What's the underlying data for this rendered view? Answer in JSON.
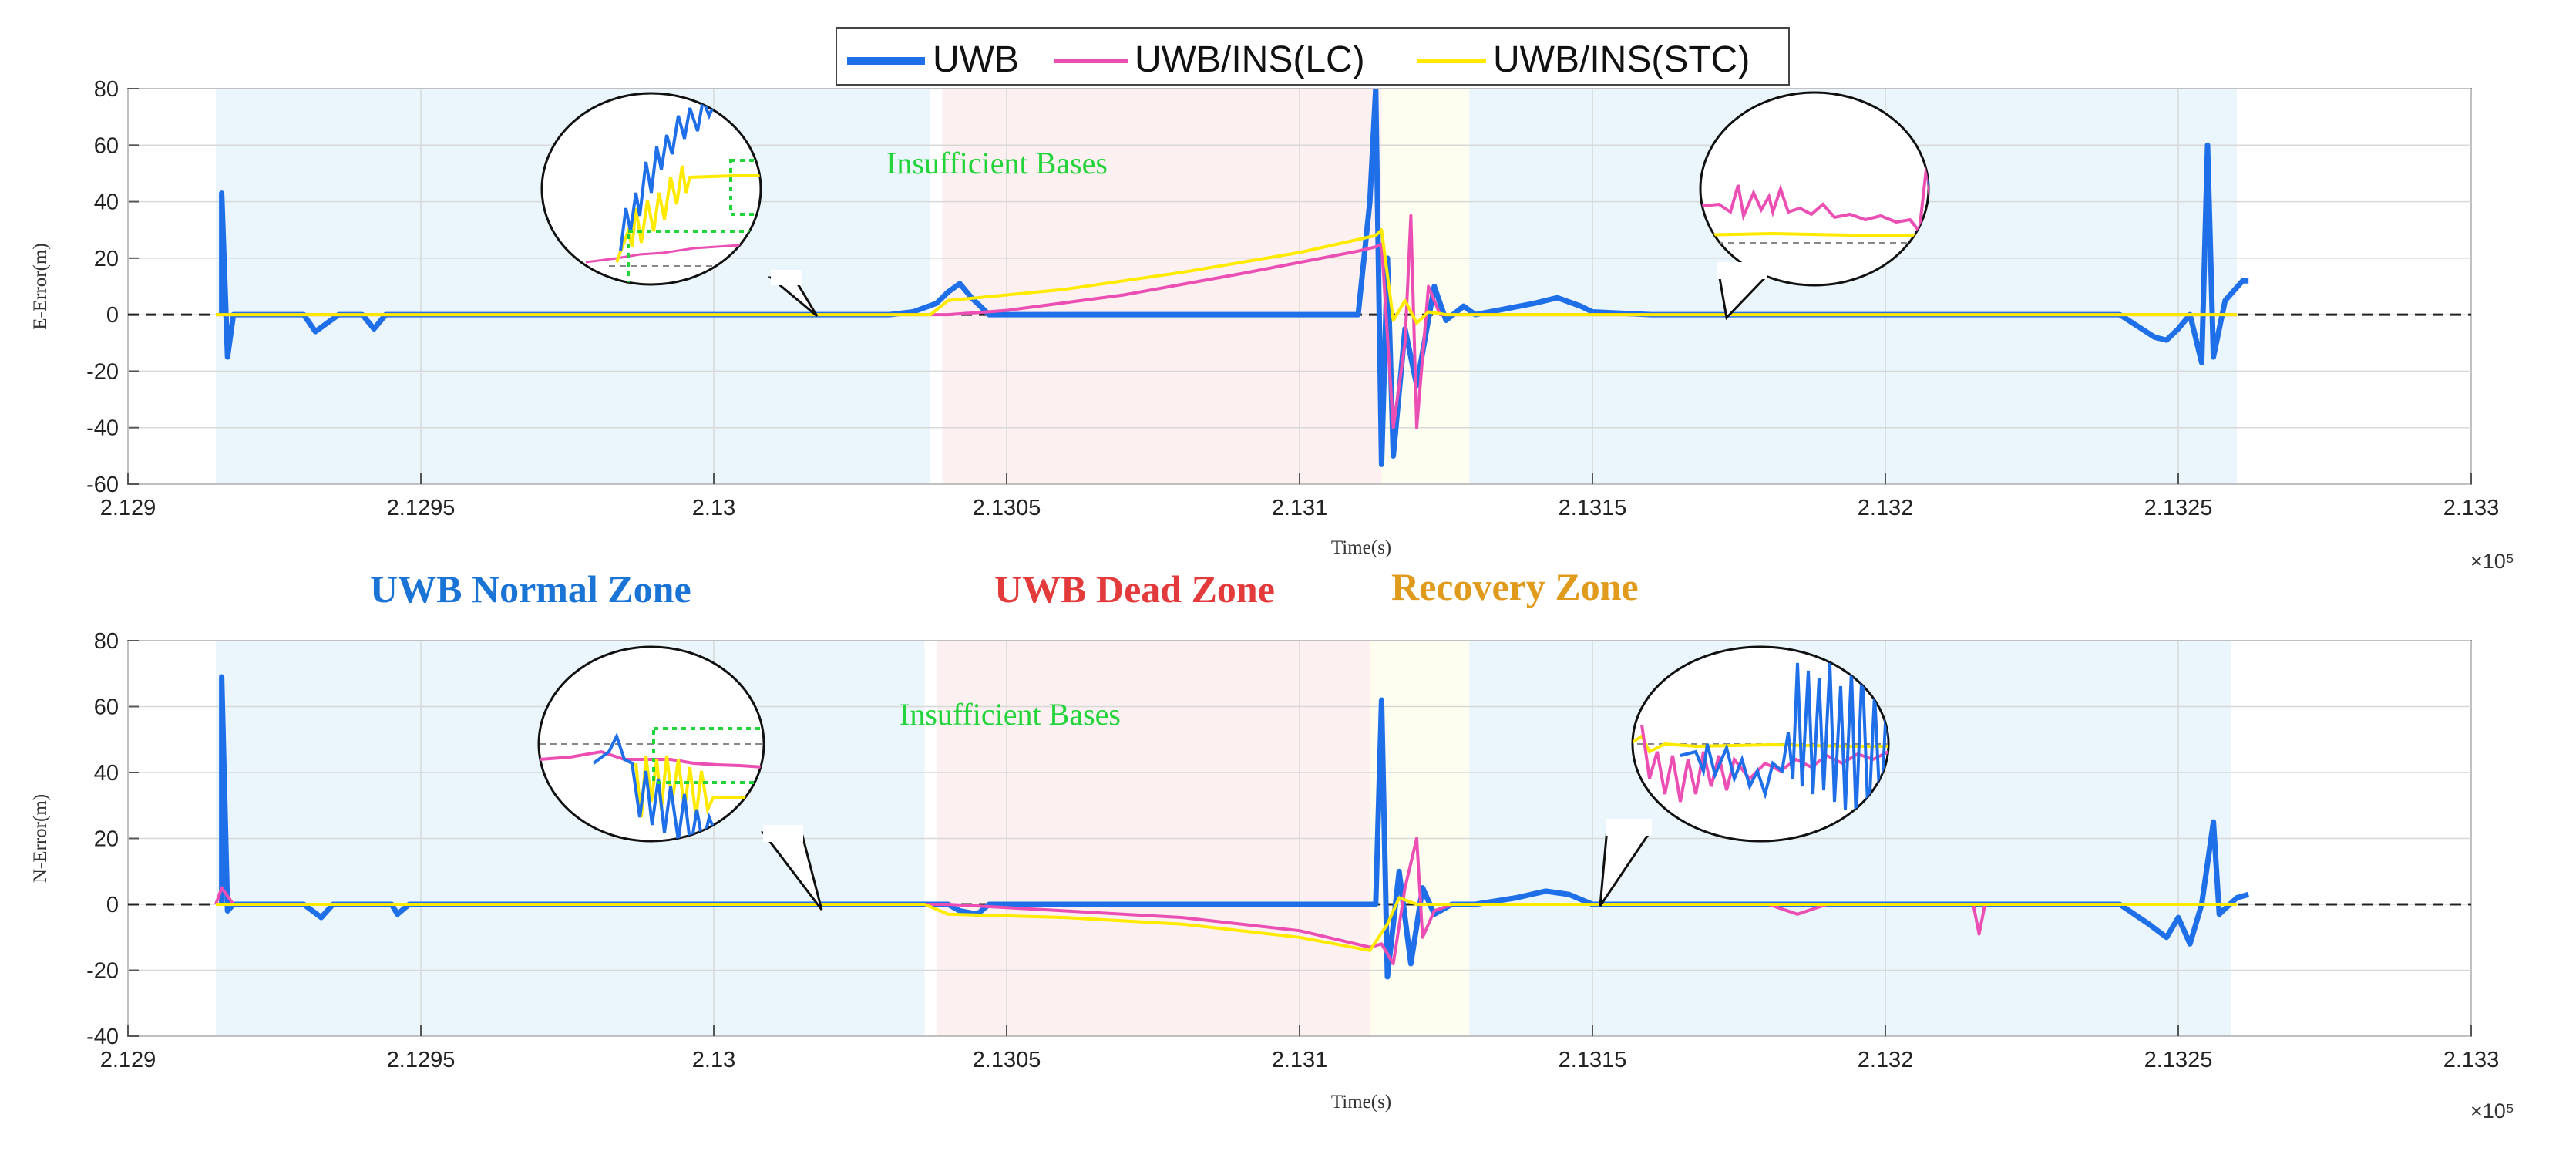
{
  "legend": {
    "entries": [
      {
        "label": "UWB",
        "color": "#1f6fe8"
      },
      {
        "label": "UWB/INS(LC)",
        "color": "#ec4fb4"
      },
      {
        "label": "UWB/INS(STC)",
        "color": "#ffea00"
      }
    ]
  },
  "colors": {
    "uwb": "#1f6fe8",
    "lc": "#ec4fb4",
    "stc": "#ffea00",
    "normal_zone_fill": "#eaf6fb",
    "dead_zone_fill": "#fdf0f0",
    "recovery_zone_fill": "#fdfdf0",
    "annotation": "#22d43a",
    "normal_label": "#1a74d6",
    "dead_label": "#e33b3b",
    "recovery_label": "#e09a1c"
  },
  "zone_labels": {
    "normal": "UWB Normal Zone",
    "dead": "UWB Dead Zone",
    "recovery": "Recovery Zone"
  },
  "chart_data": [
    {
      "type": "line",
      "ylabel": "E-Error(m)",
      "xlabel": "Time(s)",
      "x_multiplier": "×10⁵",
      "xlim": [
        2.129,
        2.133
      ],
      "ylim": [
        -60,
        80
      ],
      "xticks": [
        "2.129",
        "2.1295",
        "2.13",
        "2.1305",
        "2.131",
        "2.1315",
        "2.132",
        "2.1325",
        "2.133"
      ],
      "xtick_values": [
        2.129,
        2.1295,
        2.13,
        2.1305,
        2.131,
        2.1315,
        2.132,
        2.1325,
        2.133
      ],
      "yticks": [
        "80",
        "60",
        "40",
        "20",
        "0",
        "-20",
        "-40",
        "-60"
      ],
      "ytick_values": [
        80,
        60,
        40,
        20,
        0,
        -20,
        -40,
        -60
      ],
      "zones": [
        {
          "name": "normal",
          "start": 2.12915,
          "end": 2.13037
        },
        {
          "name": "dead",
          "start": 2.13039,
          "end": 2.13114
        },
        {
          "name": "recovery",
          "start": 2.13114,
          "end": 2.13129
        },
        {
          "name": "normal",
          "start": 2.13129,
          "end": 2.1326
        }
      ],
      "annotation": "Insufficient Bases",
      "series": [
        {
          "name": "UWB",
          "points": [
            [
              2.12916,
              0
            ],
            [
              2.12916,
              43
            ],
            [
              2.12917,
              -15
            ],
            [
              2.12918,
              0
            ],
            [
              2.1293,
              0
            ],
            [
              2.12932,
              -6
            ],
            [
              2.12934,
              -3
            ],
            [
              2.12936,
              0
            ],
            [
              2.1294,
              0
            ],
            [
              2.12942,
              -5
            ],
            [
              2.12944,
              0
            ],
            [
              2.1303,
              0
            ],
            [
              2.13034,
              1
            ],
            [
              2.13038,
              4
            ],
            [
              2.1304,
              8
            ],
            [
              2.13042,
              11
            ],
            [
              2.13044,
              6
            ],
            [
              2.13047,
              0
            ],
            [
              2.1311,
              0
            ],
            [
              2.13112,
              40
            ],
            [
              2.13113,
              80
            ],
            [
              2.13114,
              -53
            ],
            [
              2.13115,
              20
            ],
            [
              2.13116,
              -50
            ],
            [
              2.13118,
              -5
            ],
            [
              2.1312,
              -25
            ],
            [
              2.13123,
              10
            ],
            [
              2.13125,
              -2
            ],
            [
              2.13128,
              3
            ],
            [
              2.1313,
              0
            ],
            [
              2.13135,
              2
            ],
            [
              2.1314,
              4
            ],
            [
              2.13144,
              6
            ],
            [
              2.13148,
              3
            ],
            [
              2.1315,
              1
            ],
            [
              2.1316,
              0
            ],
            [
              2.1324,
              0
            ],
            [
              2.13243,
              -4
            ],
            [
              2.13246,
              -8
            ],
            [
              2.13248,
              -9
            ],
            [
              2.1325,
              -5
            ],
            [
              2.13252,
              0
            ],
            [
              2.13254,
              -17
            ],
            [
              2.13255,
              60
            ],
            [
              2.13256,
              -15
            ],
            [
              2.13258,
              5
            ],
            [
              2.13261,
              12
            ],
            [
              2.13262,
              12
            ]
          ]
        },
        {
          "name": "UWB/INS(LC)",
          "points": [
            [
              2.12915,
              0
            ],
            [
              2.1304,
              0
            ],
            [
              2.1305,
              1.5
            ],
            [
              2.1307,
              7
            ],
            [
              2.1309,
              14.5
            ],
            [
              2.1311,
              22.5
            ],
            [
              2.13113,
              24
            ],
            [
              2.13114,
              25
            ],
            [
              2.13116,
              -40
            ],
            [
              2.13118,
              -10
            ],
            [
              2.13119,
              35
            ],
            [
              2.1312,
              -40
            ],
            [
              2.13122,
              10
            ],
            [
              2.13124,
              0
            ],
            [
              2.1313,
              0
            ],
            [
              2.1326,
              0
            ]
          ]
        },
        {
          "name": "UWB/INS(STC)",
          "points": [
            [
              2.12915,
              0
            ],
            [
              2.13037,
              0
            ],
            [
              2.1304,
              5
            ],
            [
              2.1306,
              9
            ],
            [
              2.1308,
              15
            ],
            [
              2.131,
              22
            ],
            [
              2.13113,
              28
            ],
            [
              2.13114,
              30
            ],
            [
              2.13116,
              -2
            ],
            [
              2.13118,
              5
            ],
            [
              2.1312,
              -3
            ],
            [
              2.13122,
              1
            ],
            [
              2.13125,
              0
            ],
            [
              2.1326,
              0
            ]
          ]
        }
      ]
    },
    {
      "type": "line",
      "ylabel": "N-Error(m)",
      "xlabel": "Time(s)",
      "x_multiplier": "×10⁵",
      "xlim": [
        2.129,
        2.133
      ],
      "ylim": [
        -40,
        80
      ],
      "xticks": [
        "2.129",
        "2.1295",
        "2.13",
        "2.1305",
        "2.131",
        "2.1315",
        "2.132",
        "2.1325",
        "2.133"
      ],
      "xtick_values": [
        2.129,
        2.1295,
        2.13,
        2.1305,
        2.131,
        2.1315,
        2.132,
        2.1325,
        2.133
      ],
      "yticks": [
        "80",
        "60",
        "40",
        "20",
        "0",
        "-20",
        "-40"
      ],
      "ytick_values": [
        80,
        60,
        40,
        20,
        0,
        -20,
        -40
      ],
      "zones": [
        {
          "name": "normal",
          "start": 2.12915,
          "end": 2.13036
        },
        {
          "name": "dead",
          "start": 2.13038,
          "end": 2.13112
        },
        {
          "name": "recovery",
          "start": 2.13112,
          "end": 2.13129
        },
        {
          "name": "normal",
          "start": 2.13129,
          "end": 2.13259
        }
      ],
      "annotation": "Insufficient Bases",
      "series": [
        {
          "name": "UWB",
          "points": [
            [
              2.12916,
              0
            ],
            [
              2.12916,
              69
            ],
            [
              2.12917,
              -2
            ],
            [
              2.12918,
              0
            ],
            [
              2.1293,
              0
            ],
            [
              2.12933,
              -4
            ],
            [
              2.12935,
              0
            ],
            [
              2.12945,
              0
            ],
            [
              2.12946,
              -3
            ],
            [
              2.12948,
              0
            ],
            [
              2.1304,
              0
            ],
            [
              2.13042,
              -2
            ],
            [
              2.13045,
              -3
            ],
            [
              2.13047,
              0
            ],
            [
              2.13113,
              0
            ],
            [
              2.13114,
              62
            ],
            [
              2.13115,
              -22
            ],
            [
              2.13117,
              10
            ],
            [
              2.13119,
              -18
            ],
            [
              2.13121,
              5
            ],
            [
              2.13123,
              -3
            ],
            [
              2.13126,
              0
            ],
            [
              2.1313,
              0
            ],
            [
              2.13137,
              2
            ],
            [
              2.13142,
              4
            ],
            [
              2.13146,
              3
            ],
            [
              2.1315,
              0
            ],
            [
              2.1324,
              0
            ],
            [
              2.13245,
              -6
            ],
            [
              2.13248,
              -10
            ],
            [
              2.1325,
              -4
            ],
            [
              2.13252,
              -12
            ],
            [
              2.13254,
              0
            ],
            [
              2.13256,
              25
            ],
            [
              2.13257,
              -3
            ],
            [
              2.1326,
              2
            ],
            [
              2.13262,
              3
            ]
          ]
        },
        {
          "name": "UWB/INS(LC)",
          "points": [
            [
              2.12915,
              0
            ],
            [
              2.12916,
              5
            ],
            [
              2.12918,
              0
            ],
            [
              2.1304,
              0
            ],
            [
              2.1306,
              -2
            ],
            [
              2.1308,
              -4
            ],
            [
              2.131,
              -8
            ],
            [
              2.13112,
              -13
            ],
            [
              2.13114,
              -12
            ],
            [
              2.13116,
              -18
            ],
            [
              2.13118,
              5
            ],
            [
              2.1312,
              20
            ],
            [
              2.13121,
              -10
            ],
            [
              2.13123,
              -2
            ],
            [
              2.13126,
              0
            ],
            [
              2.1318,
              0
            ],
            [
              2.13185,
              -3
            ],
            [
              2.1319,
              0
            ],
            [
              2.13215,
              0
            ],
            [
              2.13216,
              -9
            ],
            [
              2.13217,
              0
            ],
            [
              2.1326,
              0
            ]
          ]
        },
        {
          "name": "UWB/INS(STC)",
          "points": [
            [
              2.12915,
              0
            ],
            [
              2.13036,
              0
            ],
            [
              2.1304,
              -3
            ],
            [
              2.1306,
              -4
            ],
            [
              2.1308,
              -6
            ],
            [
              2.131,
              -10
            ],
            [
              2.13112,
              -14
            ],
            [
              2.13115,
              -6
            ],
            [
              2.13117,
              2
            ],
            [
              2.1312,
              0
            ],
            [
              2.1326,
              0
            ]
          ]
        }
      ]
    }
  ]
}
